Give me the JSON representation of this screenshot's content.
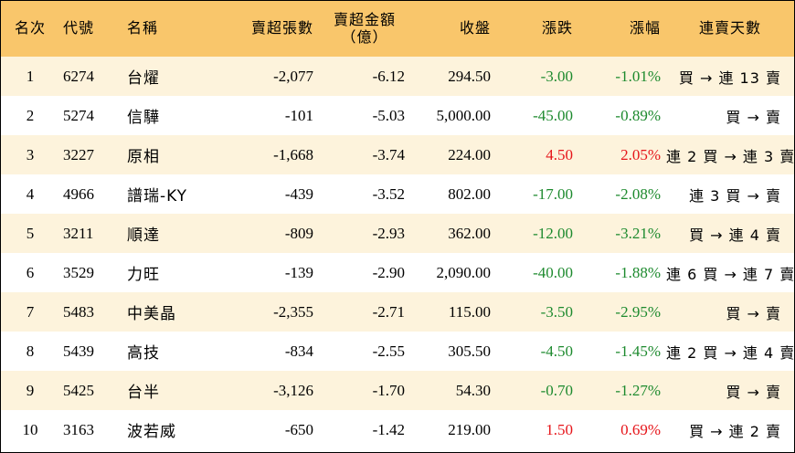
{
  "colors": {
    "header_bg": "#F9C66B",
    "odd_row_bg": "#FDF3DC",
    "even_row_bg": "#FFFFFF",
    "up": "#E6151A",
    "down": "#1D8A2E"
  },
  "headers": {
    "rank": "名次",
    "code": "代號",
    "name": "名稱",
    "net_sell_volume": "賣超張數",
    "net_sell_amount": "賣超金額",
    "net_sell_amount_unit": "（億）",
    "close": "收盤",
    "change": "漲跌",
    "change_pct": "漲幅",
    "streak": "連賣天數"
  },
  "rows": [
    {
      "rank": "1",
      "code": "6274",
      "name": "台燿",
      "volume": "-2,077",
      "amount": "-6.12",
      "close": "294.50",
      "change": "-3.00",
      "pct": "-1.01%",
      "dir": "down",
      "streak": "買 → 連 13 賣"
    },
    {
      "rank": "2",
      "code": "5274",
      "name": "信驊",
      "volume": "-101",
      "amount": "-5.03",
      "close": "5,000.00",
      "change": "-45.00",
      "pct": "-0.89%",
      "dir": "down",
      "streak": "買 → 賣"
    },
    {
      "rank": "3",
      "code": "3227",
      "name": "原相",
      "volume": "-1,668",
      "amount": "-3.74",
      "close": "224.00",
      "change": "4.50",
      "pct": "2.05%",
      "dir": "up",
      "streak": "連 2 買 → 連 3 賣"
    },
    {
      "rank": "4",
      "code": "4966",
      "name": "譜瑞-KY",
      "volume": "-439",
      "amount": "-3.52",
      "close": "802.00",
      "change": "-17.00",
      "pct": "-2.08%",
      "dir": "down",
      "streak": "連 3 買 → 賣"
    },
    {
      "rank": "5",
      "code": "3211",
      "name": "順達",
      "volume": "-809",
      "amount": "-2.93",
      "close": "362.00",
      "change": "-12.00",
      "pct": "-3.21%",
      "dir": "down",
      "streak": "買 → 連 4 賣"
    },
    {
      "rank": "6",
      "code": "3529",
      "name": "力旺",
      "volume": "-139",
      "amount": "-2.90",
      "close": "2,090.00",
      "change": "-40.00",
      "pct": "-1.88%",
      "dir": "down",
      "streak": "連 6 買 → 連 7 賣"
    },
    {
      "rank": "7",
      "code": "5483",
      "name": "中美晶",
      "volume": "-2,355",
      "amount": "-2.71",
      "close": "115.00",
      "change": "-3.50",
      "pct": "-2.95%",
      "dir": "down",
      "streak": "買 → 賣"
    },
    {
      "rank": "8",
      "code": "5439",
      "name": "高技",
      "volume": "-834",
      "amount": "-2.55",
      "close": "305.50",
      "change": "-4.50",
      "pct": "-1.45%",
      "dir": "down",
      "streak": "連 2 買 → 連 4 賣"
    },
    {
      "rank": "9",
      "code": "5425",
      "name": "台半",
      "volume": "-3,126",
      "amount": "-1.70",
      "close": "54.30",
      "change": "-0.70",
      "pct": "-1.27%",
      "dir": "down",
      "streak": "買 → 賣"
    },
    {
      "rank": "10",
      "code": "3163",
      "name": "波若威",
      "volume": "-650",
      "amount": "-1.42",
      "close": "219.00",
      "change": "1.50",
      "pct": "0.69%",
      "dir": "up",
      "streak": "買 → 連 2 賣"
    }
  ]
}
